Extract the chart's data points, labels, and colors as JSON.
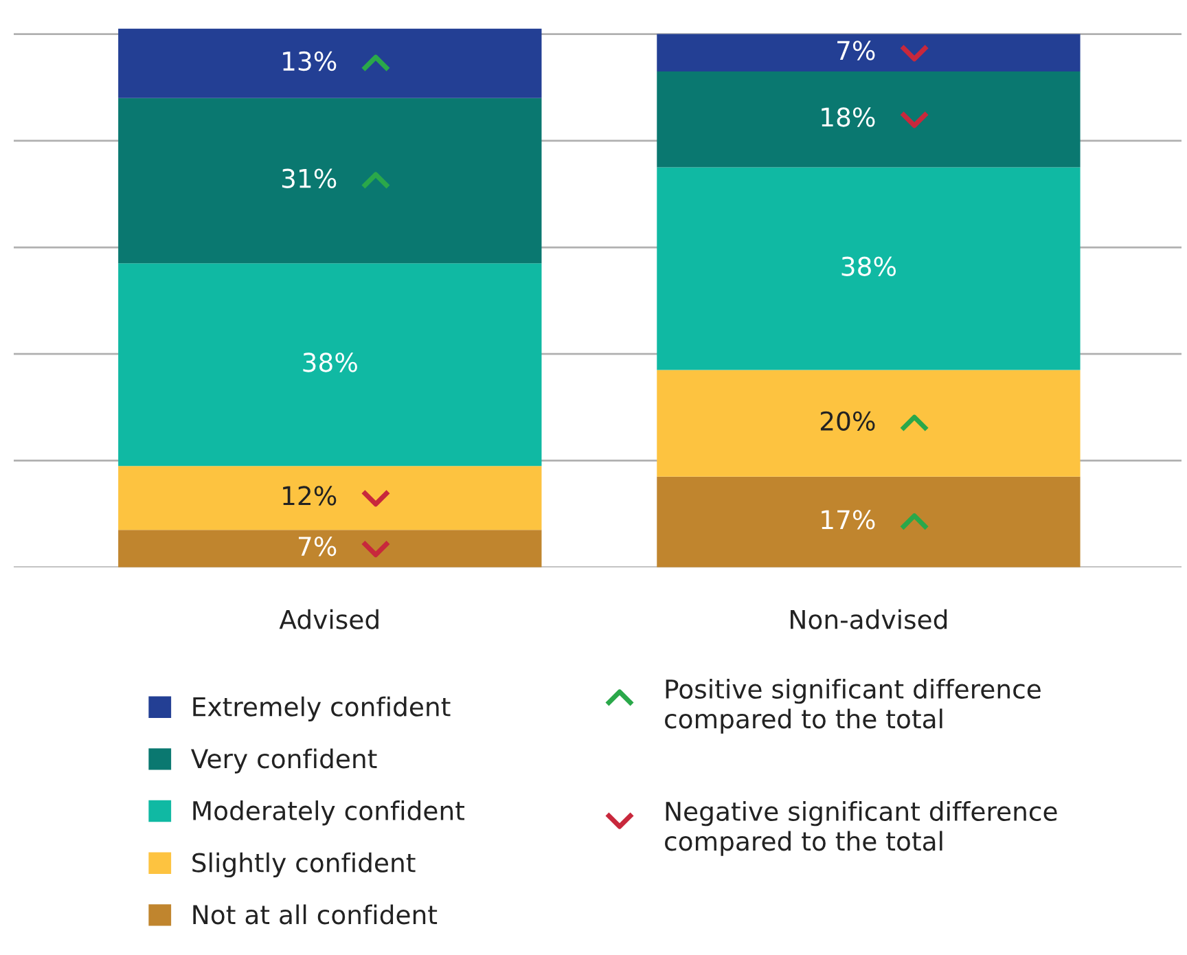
{
  "chart_data": {
    "type": "bar",
    "stacked": true,
    "categories": [
      "Advised",
      "Non-advised"
    ],
    "series": [
      {
        "name": "Not at all confident",
        "color": "#c0852e",
        "values": [
          7,
          17
        ],
        "value_labels": [
          "7%",
          "17%"
        ]
      },
      {
        "name": "Slightly confident",
        "color": "#fdc340",
        "values": [
          12,
          20
        ],
        "value_labels": [
          "12%",
          "20%"
        ]
      },
      {
        "name": "Moderately confident",
        "color": "#10b9a3",
        "values": [
          38,
          38
        ],
        "value_labels": [
          "38%",
          "38%"
        ]
      },
      {
        "name": "Very confident",
        "color": "#0a7870",
        "values": [
          31,
          18
        ],
        "value_labels": [
          "31%",
          "18%"
        ]
      },
      {
        "name": "Extremely confident",
        "color": "#233f94",
        "values": [
          13,
          7
        ],
        "value_labels": [
          "13%",
          "7%"
        ]
      }
    ],
    "grid": "y",
    "tick_labels": "x",
    "legend": "bottom",
    "annotations": [
      "Positive significant difference\ncompared to the total",
      "Negative significant difference\ncompared to the total"
    ]
  }
}
